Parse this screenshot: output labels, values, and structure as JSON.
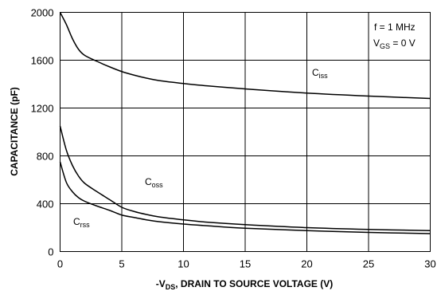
{
  "chart_data": {
    "type": "line",
    "xlabel": {
      "prefix": "-V",
      "sub": "DS",
      "rest": ", DRAIN TO SOURCE VOLTAGE (V)"
    },
    "ylabel": "CAPACITANCE (pF)",
    "xlim": [
      0,
      30
    ],
    "ylim": [
      0,
      2000
    ],
    "xticks": [
      0,
      5,
      10,
      15,
      20,
      25,
      30
    ],
    "yticks": [
      0,
      400,
      800,
      1200,
      1600,
      2000
    ],
    "grid": true,
    "conditions": [
      {
        "main": "f = 1 MHz",
        "sub": "",
        "tail": ""
      },
      {
        "main": "V",
        "sub": "GS",
        "tail": " = 0 V"
      }
    ],
    "series": [
      {
        "name": "Ciss",
        "label_main": "C",
        "label_sub": "iss",
        "points": [
          [
            0,
            2000
          ],
          [
            0.5,
            1900
          ],
          [
            1,
            1780
          ],
          [
            1.5,
            1690
          ],
          [
            2,
            1640
          ],
          [
            3,
            1590
          ],
          [
            4,
            1545
          ],
          [
            5,
            1505
          ],
          [
            6,
            1475
          ],
          [
            7,
            1450
          ],
          [
            8,
            1430
          ],
          [
            10,
            1405
          ],
          [
            12,
            1385
          ],
          [
            15,
            1360
          ],
          [
            20,
            1325
          ],
          [
            25,
            1300
          ],
          [
            30,
            1280
          ]
        ]
      },
      {
        "name": "Coss",
        "label_main": "C",
        "label_sub": "oss",
        "points": [
          [
            0,
            1050
          ],
          [
            0.5,
            850
          ],
          [
            1,
            720
          ],
          [
            1.5,
            630
          ],
          [
            2,
            570
          ],
          [
            3,
            500
          ],
          [
            4,
            435
          ],
          [
            5,
            370
          ],
          [
            6,
            335
          ],
          [
            7,
            310
          ],
          [
            8,
            290
          ],
          [
            10,
            265
          ],
          [
            12,
            245
          ],
          [
            15,
            225
          ],
          [
            20,
            200
          ],
          [
            25,
            185
          ],
          [
            30,
            175
          ]
        ]
      },
      {
        "name": "Crss",
        "label_main": "C",
        "label_sub": "rss",
        "points": [
          [
            0,
            750
          ],
          [
            0.5,
            580
          ],
          [
            1,
            500
          ],
          [
            1.5,
            450
          ],
          [
            2,
            420
          ],
          [
            3,
            380
          ],
          [
            4,
            345
          ],
          [
            5,
            305
          ],
          [
            6,
            285
          ],
          [
            7,
            265
          ],
          [
            8,
            250
          ],
          [
            10,
            230
          ],
          [
            12,
            215
          ],
          [
            15,
            195
          ],
          [
            20,
            175
          ],
          [
            25,
            160
          ],
          [
            30,
            150
          ]
        ]
      }
    ]
  }
}
